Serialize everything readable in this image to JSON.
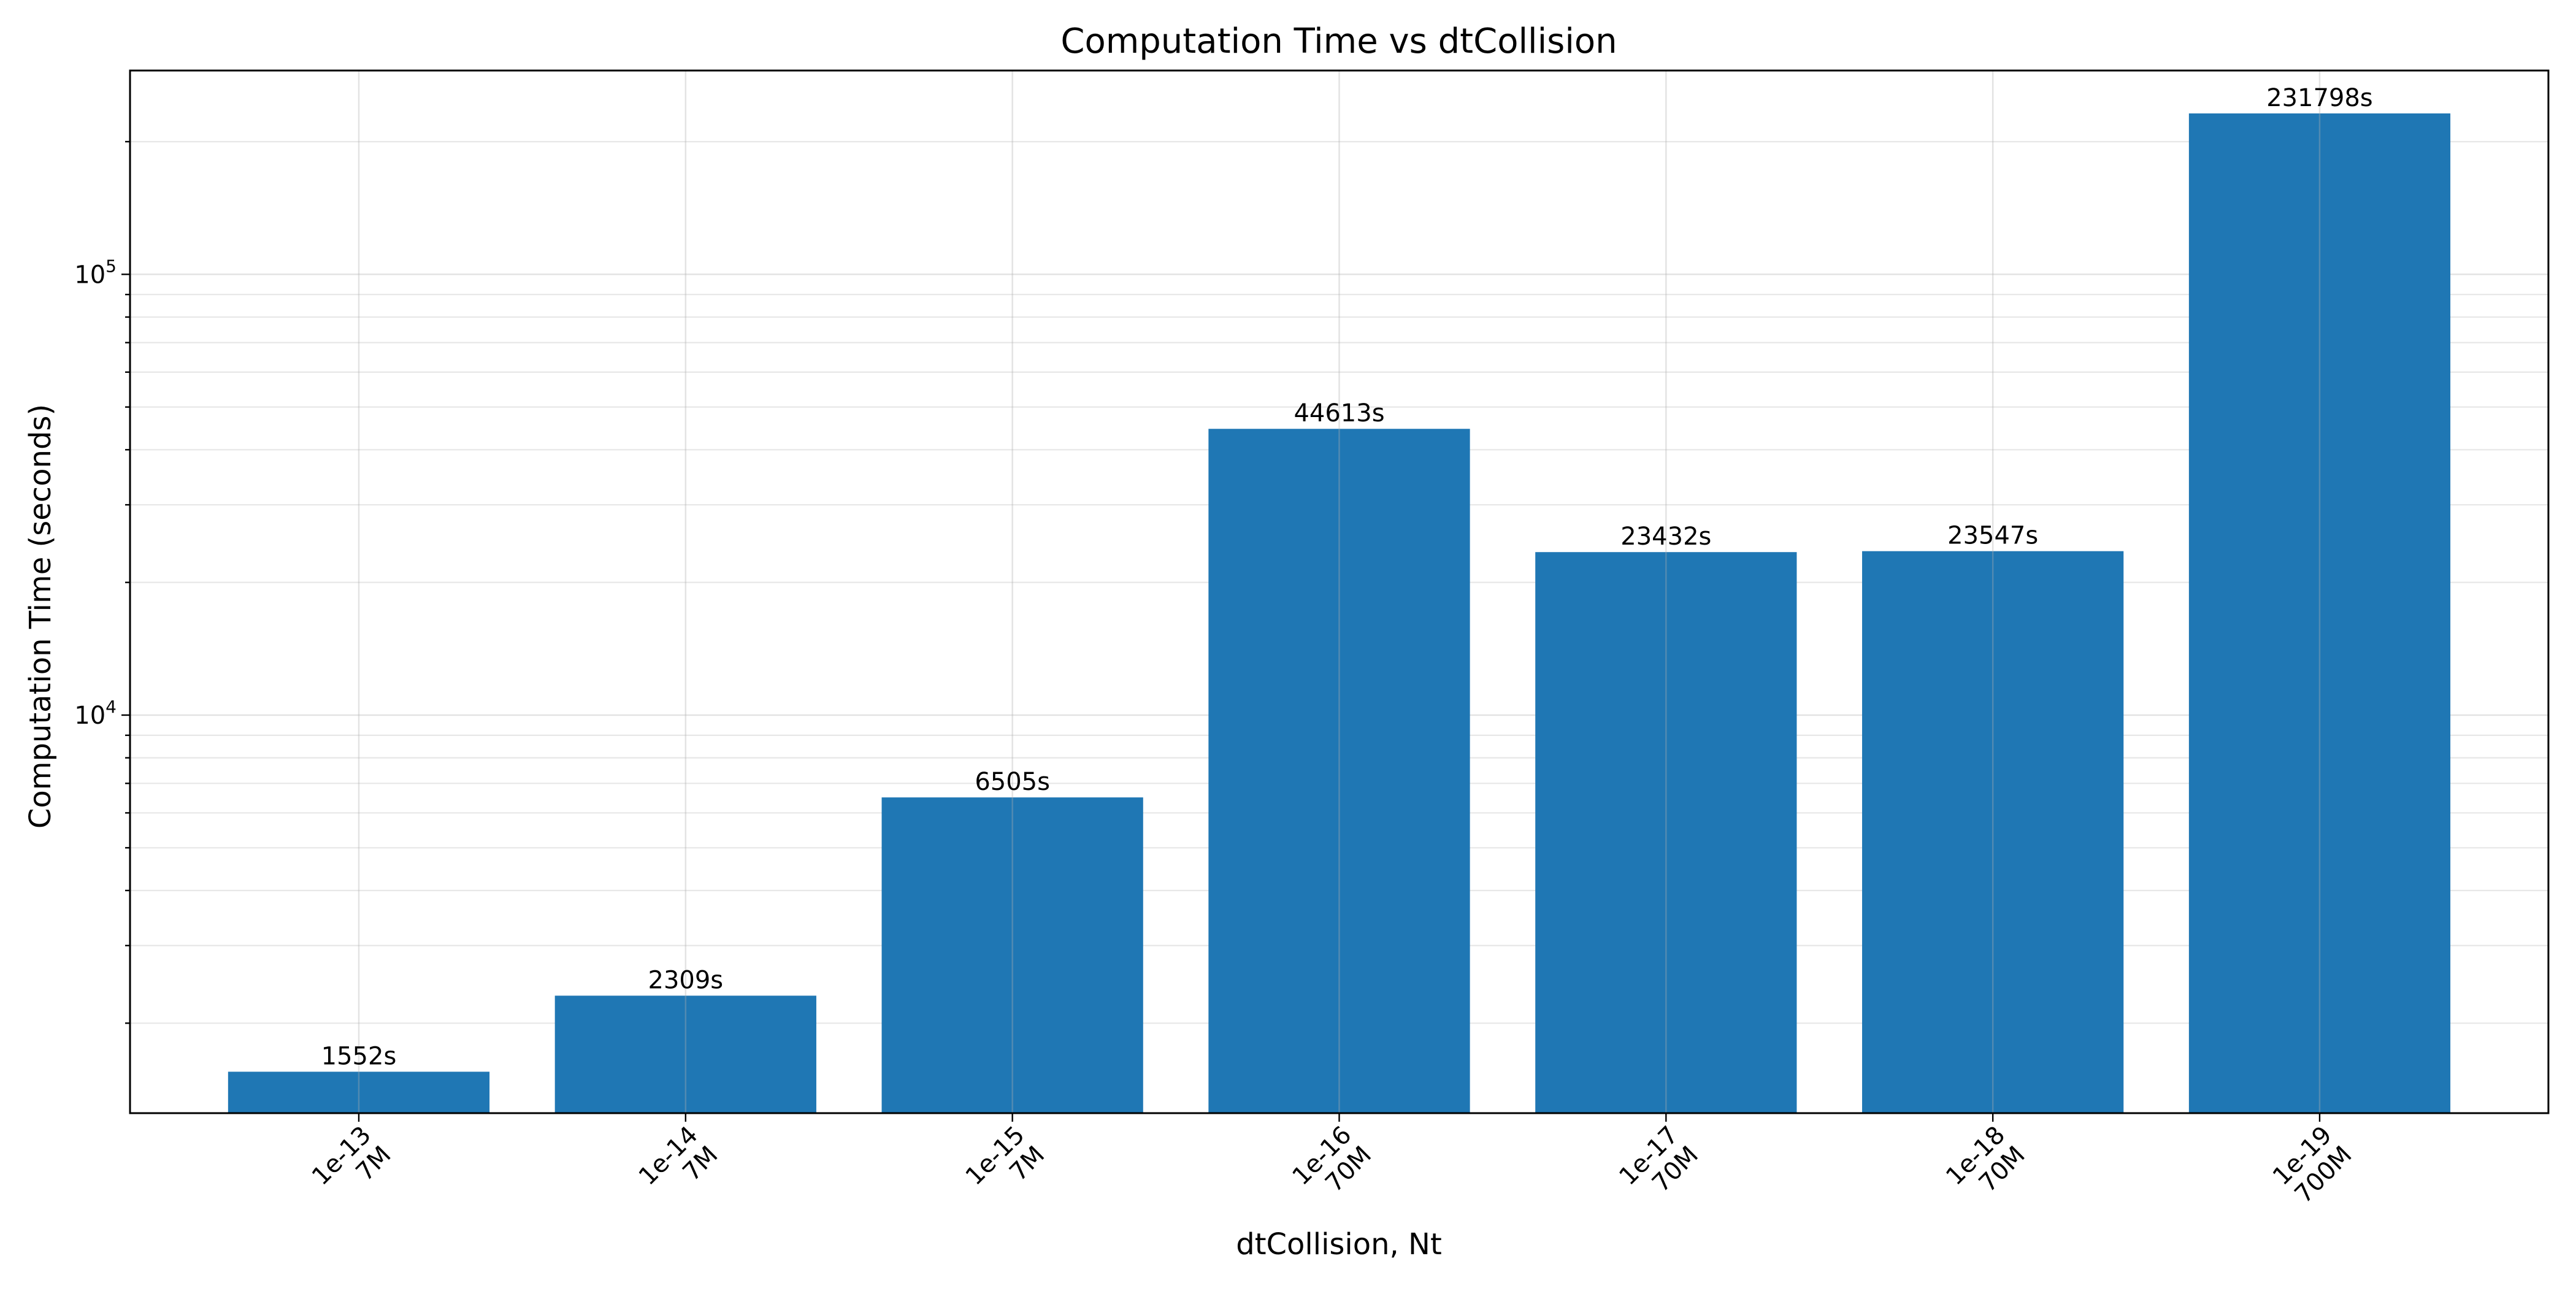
{
  "chart_data": {
    "type": "bar",
    "title": "Computation Time vs dtCollision",
    "xlabel": "dtCollision, Nt",
    "ylabel": "Computation Time (seconds)",
    "y_scale": "log",
    "ylim": [
      1250,
      290000
    ],
    "grid": true,
    "bar_color": "#1f77b4",
    "categories": [
      {
        "dt": "1e-13",
        "nt": "7M"
      },
      {
        "dt": "1e-14",
        "nt": "7M"
      },
      {
        "dt": "1e-15",
        "nt": "7M"
      },
      {
        "dt": "1e-16",
        "nt": "70M"
      },
      {
        "dt": "1e-17",
        "nt": "70M"
      },
      {
        "dt": "1e-18",
        "nt": "70M"
      },
      {
        "dt": "1e-19",
        "nt": "700M"
      }
    ],
    "values": [
      1552,
      2309,
      6505,
      44613,
      23432,
      23547,
      231798
    ],
    "data_labels": [
      "1552s",
      "2309s",
      "6505s",
      "44613s",
      "23432s",
      "23547s",
      "231798s"
    ],
    "y_major_ticks": [
      {
        "value": 10000,
        "base": "10",
        "exp": "4"
      },
      {
        "value": 100000,
        "base": "10",
        "exp": "5"
      }
    ]
  }
}
